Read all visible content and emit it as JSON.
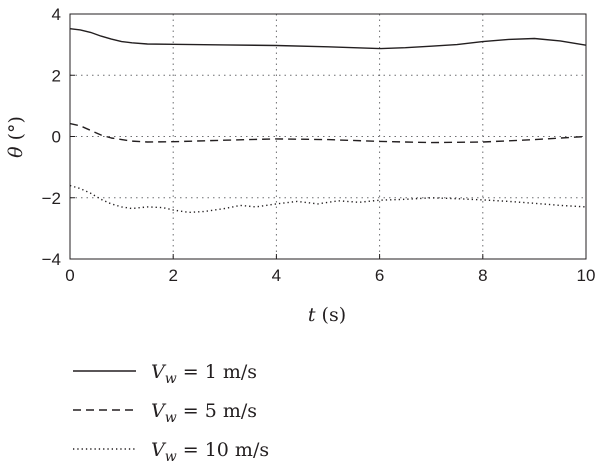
{
  "chart_data": {
    "type": "line",
    "xlabel": {
      "var": "t",
      "unit": "(s)"
    },
    "ylabel": {
      "var": "θ",
      "unit": "(°)"
    },
    "xlim": [
      0,
      10
    ],
    "ylim": [
      -4,
      4
    ],
    "xticks": [
      0,
      2,
      4,
      6,
      8,
      10
    ],
    "yticks": [
      4,
      2,
      0,
      -2,
      -4
    ],
    "xtick_labels": [
      "0",
      "2",
      "4",
      "6",
      "8",
      "10"
    ],
    "ytick_labels": [
      "4",
      "2",
      "0",
      "−2",
      "−4"
    ],
    "grid": "dotted",
    "legend_position": "bottom",
    "series": [
      {
        "name": "V_w = 1 m/s",
        "label_parts": {
          "var": "V",
          "sub": "w",
          "value": " = 1 m/s"
        },
        "style": "solid",
        "x": [
          0,
          0.2,
          0.4,
          0.6,
          0.8,
          1.0,
          1.2,
          1.5,
          2.0,
          3.0,
          4.0,
          5.0,
          6.0,
          6.5,
          7.0,
          7.5,
          8.0,
          8.5,
          9.0,
          9.5,
          10.0
        ],
        "y": [
          3.52,
          3.48,
          3.4,
          3.28,
          3.18,
          3.1,
          3.06,
          3.02,
          3.01,
          2.99,
          2.97,
          2.93,
          2.87,
          2.9,
          2.95,
          3.0,
          3.1,
          3.17,
          3.2,
          3.12,
          2.98
        ]
      },
      {
        "name": "V_w = 5 m/s",
        "label_parts": {
          "var": "V",
          "sub": "w",
          "value": " = 5 m/s"
        },
        "style": "dashed",
        "x": [
          0,
          0.2,
          0.4,
          0.6,
          0.8,
          1.0,
          1.2,
          1.5,
          2.0,
          3.0,
          4.0,
          5.0,
          6.0,
          7.0,
          8.0,
          9.0,
          10.0
        ],
        "y": [
          0.42,
          0.35,
          0.2,
          0.05,
          -0.05,
          -0.1,
          -0.15,
          -0.18,
          -0.17,
          -0.12,
          -0.08,
          -0.1,
          -0.16,
          -0.2,
          -0.18,
          -0.1,
          0.0
        ]
      },
      {
        "name": "V_w = 10 m/s",
        "label_parts": {
          "var": "V",
          "sub": "w",
          "value": " = 10 m/s"
        },
        "style": "dotted",
        "x": [
          0,
          0.2,
          0.4,
          0.6,
          0.8,
          1.0,
          1.2,
          1.5,
          1.8,
          2.0,
          2.3,
          2.6,
          3.0,
          3.3,
          3.6,
          4.0,
          4.4,
          4.8,
          5.2,
          5.6,
          6.0,
          6.5,
          7.0,
          7.5,
          8.0,
          8.5,
          9.0,
          9.5,
          10.0
        ],
        "y": [
          -1.6,
          -1.7,
          -1.85,
          -2.05,
          -2.2,
          -2.3,
          -2.35,
          -2.3,
          -2.32,
          -2.4,
          -2.48,
          -2.45,
          -2.35,
          -2.25,
          -2.3,
          -2.2,
          -2.12,
          -2.2,
          -2.1,
          -2.15,
          -2.08,
          -2.05,
          -2.0,
          -2.03,
          -2.07,
          -2.12,
          -2.18,
          -2.25,
          -2.3
        ]
      }
    ]
  }
}
